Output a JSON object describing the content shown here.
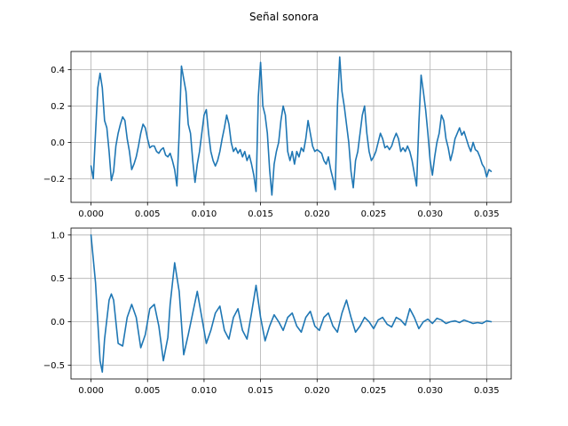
{
  "figure": {
    "title": "Señal sonora",
    "line_color": "#1f77b4"
  },
  "chart_data": [
    {
      "type": "line",
      "title": "",
      "xlabel": "",
      "ylabel": "",
      "xlim": [
        -0.00177,
        0.03717
      ],
      "ylim": [
        -0.33,
        0.5
      ],
      "grid": true,
      "xticks": [
        0.0,
        0.005,
        0.01,
        0.015,
        0.02,
        0.025,
        0.03,
        0.035
      ],
      "xtick_labels": [
        "0.000",
        "0.005",
        "0.010",
        "0.015",
        "0.020",
        "0.025",
        "0.030",
        "0.035"
      ],
      "yticks": [
        -0.2,
        0.0,
        0.2,
        0.4
      ],
      "ytick_labels": [
        "−0.2",
        "0.0",
        "0.2",
        "0.4"
      ],
      "series": [
        {
          "x": [
            0.0,
            0.0002,
            0.0004,
            0.0006,
            0.0008,
            0.001,
            0.0012,
            0.0014,
            0.0016,
            0.0018,
            0.002,
            0.0022,
            0.0024,
            0.0026,
            0.0028,
            0.003,
            0.0032,
            0.0034,
            0.0036,
            0.0038,
            0.004,
            0.0042,
            0.0044,
            0.0046,
            0.0048,
            0.005,
            0.0052,
            0.0054,
            0.0056,
            0.0058,
            0.006,
            0.0062,
            0.0064,
            0.0066,
            0.0068,
            0.007,
            0.0072,
            0.0074,
            0.0076,
            0.0078,
            0.008,
            0.0082,
            0.0084,
            0.0086,
            0.0088,
            0.009,
            0.0092,
            0.0094,
            0.0096,
            0.0098,
            0.01,
            0.0102,
            0.0104,
            0.0106,
            0.0108,
            0.011,
            0.0112,
            0.0114,
            0.0116,
            0.0118,
            0.012,
            0.0122,
            0.0124,
            0.0126,
            0.0128,
            0.013,
            0.0132,
            0.0134,
            0.0136,
            0.0138,
            0.014,
            0.0142,
            0.0144,
            0.0146,
            0.0148,
            0.015,
            0.0152,
            0.0154,
            0.0156,
            0.0158,
            0.016,
            0.0162,
            0.0164,
            0.0166,
            0.0168,
            0.017,
            0.0172,
            0.0174,
            0.0176,
            0.0178,
            0.018,
            0.0182,
            0.0184,
            0.0186,
            0.0188,
            0.019,
            0.0192,
            0.0194,
            0.0196,
            0.0198,
            0.02,
            0.0202,
            0.0204,
            0.0206,
            0.0208,
            0.021,
            0.0212,
            0.0214,
            0.0216,
            0.0218,
            0.022,
            0.0222,
            0.0224,
            0.0226,
            0.0228,
            0.023,
            0.0232,
            0.0234,
            0.0236,
            0.0238,
            0.024,
            0.0242,
            0.0244,
            0.0246,
            0.0248,
            0.025,
            0.0252,
            0.0254,
            0.0256,
            0.0258,
            0.026,
            0.0262,
            0.0264,
            0.0266,
            0.0268,
            0.027,
            0.0272,
            0.0274,
            0.0276,
            0.0278,
            0.028,
            0.0282,
            0.0284,
            0.0286,
            0.0288,
            0.029,
            0.0292,
            0.0294,
            0.0296,
            0.0298,
            0.03,
            0.0302,
            0.0304,
            0.0306,
            0.0308,
            0.031,
            0.0312,
            0.0314,
            0.0316,
            0.0318,
            0.032,
            0.0322,
            0.0324,
            0.0326,
            0.0328,
            0.033,
            0.0332,
            0.0334,
            0.0336,
            0.0338,
            0.034,
            0.0342,
            0.0344,
            0.0346,
            0.0348,
            0.035,
            0.0352,
            0.0354
          ],
          "y": [
            -0.13,
            -0.2,
            0.05,
            0.3,
            0.38,
            0.3,
            0.12,
            0.08,
            -0.05,
            -0.21,
            -0.16,
            -0.02,
            0.05,
            0.1,
            0.14,
            0.12,
            0.02,
            -0.05,
            -0.15,
            -0.12,
            -0.08,
            -0.02,
            0.05,
            0.1,
            0.08,
            0.02,
            -0.03,
            -0.02,
            -0.02,
            -0.05,
            -0.06,
            -0.04,
            -0.03,
            -0.07,
            -0.08,
            -0.06,
            -0.1,
            -0.15,
            -0.24,
            0.05,
            0.42,
            0.35,
            0.28,
            0.1,
            0.05,
            -0.1,
            -0.22,
            -0.12,
            -0.05,
            0.05,
            0.15,
            0.18,
            0.05,
            -0.05,
            -0.1,
            -0.13,
            -0.1,
            -0.05,
            0.02,
            0.08,
            0.15,
            0.1,
            0.0,
            -0.05,
            -0.03,
            -0.06,
            -0.04,
            -0.08,
            -0.05,
            -0.1,
            -0.07,
            -0.12,
            -0.18,
            -0.27,
            0.25,
            0.44,
            0.2,
            0.15,
            0.05,
            -0.15,
            -0.29,
            -0.12,
            -0.05,
            0.0,
            0.12,
            0.2,
            0.15,
            -0.05,
            -0.1,
            -0.05,
            -0.12,
            -0.05,
            -0.08,
            -0.03,
            -0.05,
            0.02,
            0.12,
            0.05,
            -0.02,
            -0.05,
            -0.04,
            -0.05,
            -0.06,
            -0.1,
            -0.12,
            -0.08,
            -0.15,
            -0.2,
            -0.26,
            0.2,
            0.47,
            0.28,
            0.2,
            0.1,
            0.0,
            -0.16,
            -0.25,
            -0.1,
            -0.05,
            0.05,
            0.15,
            0.2,
            0.05,
            -0.05,
            -0.1,
            -0.08,
            -0.05,
            0.0,
            0.05,
            0.02,
            -0.03,
            -0.02,
            -0.04,
            -0.02,
            0.02,
            0.05,
            0.02,
            -0.05,
            -0.03,
            -0.05,
            -0.02,
            -0.05,
            -0.1,
            -0.17,
            -0.24,
            0.1,
            0.37,
            0.28,
            0.18,
            0.05,
            -0.1,
            -0.18,
            -0.08,
            0.0,
            0.05,
            0.15,
            0.12,
            0.02,
            -0.03,
            -0.1,
            -0.05,
            0.02,
            0.05,
            0.08,
            0.04,
            0.06,
            0.02,
            -0.02,
            -0.05,
            0.0,
            -0.04,
            -0.05,
            -0.08,
            -0.12,
            -0.14,
            -0.19,
            -0.15,
            -0.16
          ]
        }
      ]
    },
    {
      "type": "line",
      "title": "",
      "xlabel": "",
      "ylabel": "",
      "xlim": [
        -0.00177,
        0.03717
      ],
      "ylim": [
        -0.66,
        1.08
      ],
      "grid": true,
      "xticks": [
        0.0,
        0.005,
        0.01,
        0.015,
        0.02,
        0.025,
        0.03,
        0.035
      ],
      "xtick_labels": [
        "0.000",
        "0.005",
        "0.010",
        "0.015",
        "0.020",
        "0.025",
        "0.030",
        "0.035"
      ],
      "yticks": [
        -0.5,
        0.0,
        0.5,
        1.0
      ],
      "ytick_labels": [
        "−0.5",
        "0.0",
        "0.5",
        "1.0"
      ],
      "series": [
        {
          "x": [
            0.0,
            0.0004,
            0.0008,
            0.001,
            0.0012,
            0.0016,
            0.0018,
            0.002,
            0.0024,
            0.0028,
            0.0032,
            0.0036,
            0.004,
            0.0044,
            0.0048,
            0.0052,
            0.0056,
            0.006,
            0.0064,
            0.0068,
            0.007,
            0.0074,
            0.0078,
            0.0082,
            0.0086,
            0.009,
            0.0094,
            0.0098,
            0.0102,
            0.0106,
            0.011,
            0.0114,
            0.0118,
            0.0122,
            0.0126,
            0.013,
            0.0134,
            0.0138,
            0.0142,
            0.0146,
            0.015,
            0.0154,
            0.0158,
            0.0162,
            0.0166,
            0.017,
            0.0174,
            0.0178,
            0.0182,
            0.0186,
            0.019,
            0.0194,
            0.0198,
            0.0202,
            0.0206,
            0.021,
            0.0214,
            0.0218,
            0.0222,
            0.0226,
            0.023,
            0.0234,
            0.0238,
            0.0242,
            0.0246,
            0.025,
            0.0254,
            0.0258,
            0.0262,
            0.0266,
            0.027,
            0.0274,
            0.0278,
            0.0282,
            0.0286,
            0.029,
            0.0294,
            0.0298,
            0.0302,
            0.0306,
            0.031,
            0.0314,
            0.0318,
            0.0322,
            0.0326,
            0.033,
            0.0334,
            0.0338,
            0.0342,
            0.0346,
            0.035,
            0.0354
          ],
          "y": [
            1.0,
            0.45,
            -0.45,
            -0.58,
            -0.2,
            0.25,
            0.32,
            0.25,
            -0.25,
            -0.28,
            0.05,
            0.2,
            0.05,
            -0.3,
            -0.15,
            0.15,
            0.2,
            -0.05,
            -0.45,
            -0.18,
            0.2,
            0.68,
            0.35,
            -0.38,
            -0.15,
            0.1,
            0.35,
            0.05,
            -0.25,
            -0.1,
            0.1,
            0.18,
            -0.1,
            -0.2,
            0.05,
            0.15,
            -0.1,
            -0.2,
            0.1,
            0.42,
            0.05,
            -0.22,
            -0.05,
            0.08,
            0.0,
            -0.1,
            0.05,
            0.1,
            -0.05,
            -0.12,
            0.05,
            0.12,
            -0.05,
            -0.1,
            0.05,
            0.1,
            -0.05,
            -0.12,
            0.1,
            0.25,
            0.05,
            -0.12,
            -0.05,
            0.05,
            0.0,
            -0.08,
            0.02,
            0.05,
            -0.03,
            -0.06,
            0.05,
            0.02,
            -0.04,
            0.15,
            0.05,
            -0.08,
            0.0,
            0.03,
            -0.02,
            0.04,
            0.02,
            -0.02,
            0.0,
            0.01,
            -0.01,
            0.02,
            0.0,
            -0.02,
            -0.01,
            -0.02,
            0.01,
            0.0
          ]
        }
      ]
    }
  ]
}
